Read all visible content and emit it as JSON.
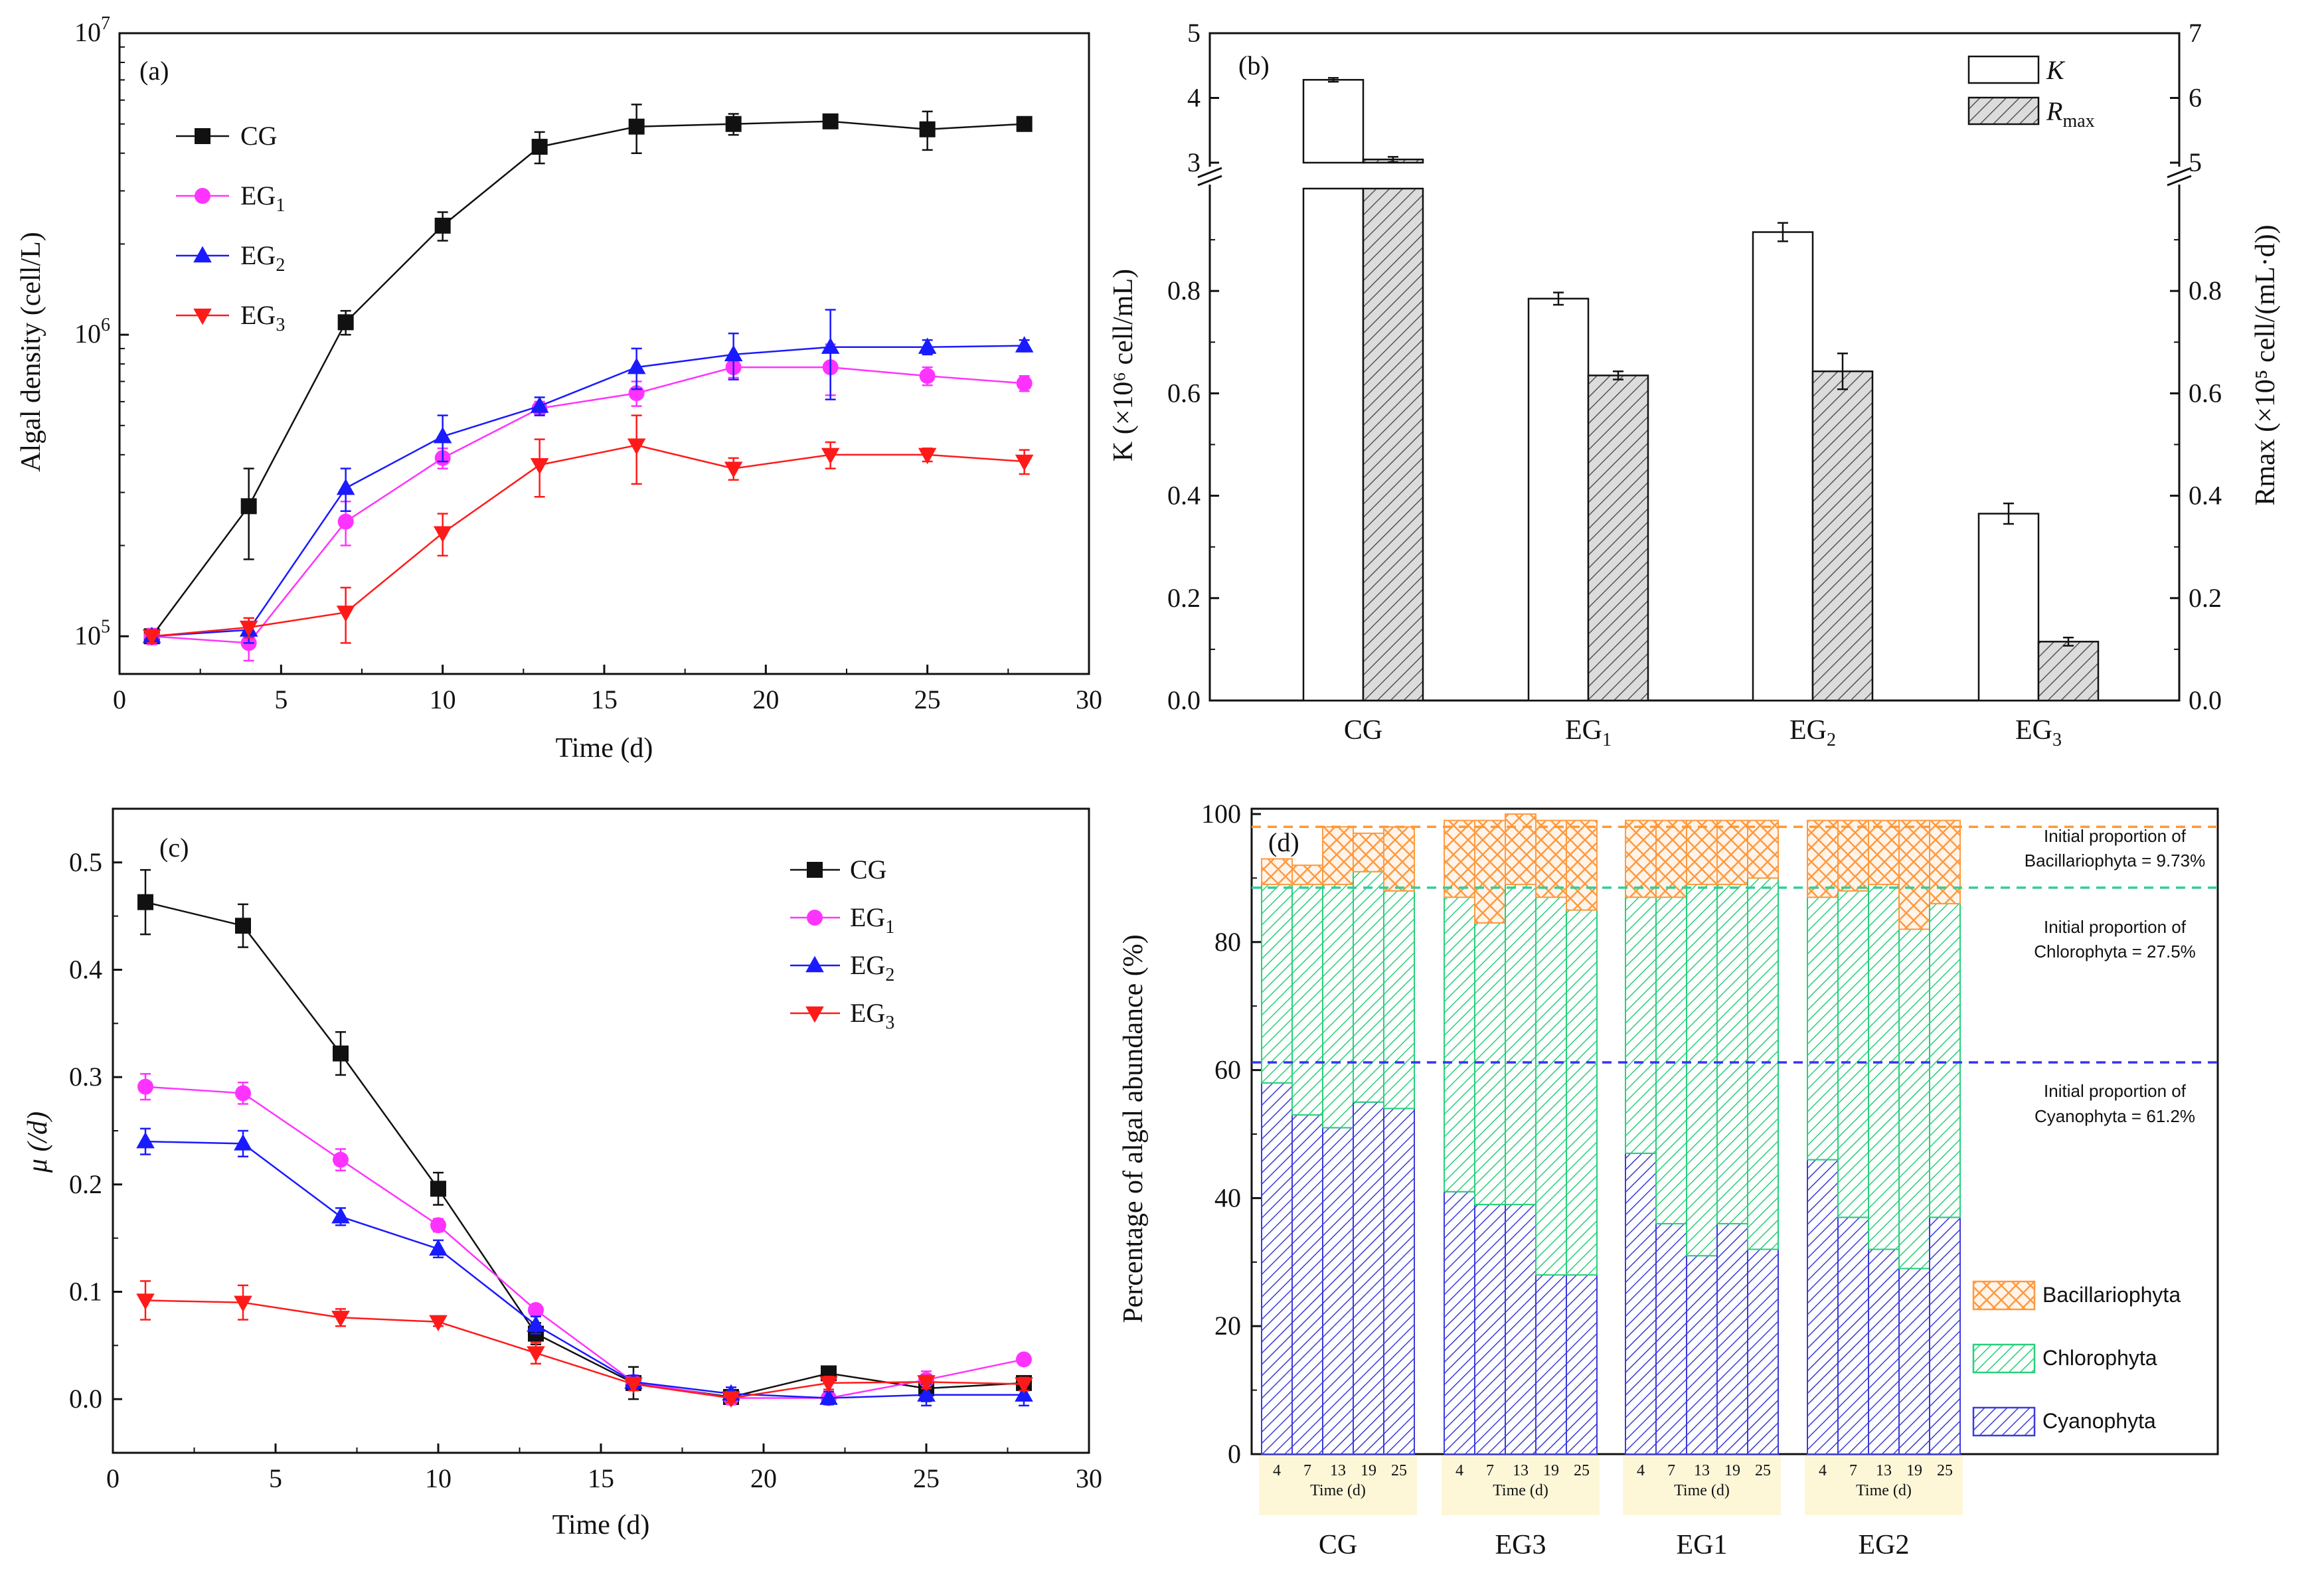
{
  "colors": {
    "CG": "#111111",
    "EG1": "#ff33ff",
    "EG2": "#1a1aff",
    "EG3": "#ff1a1a",
    "cyano": "#3b3bdd",
    "chloro": "#27d07a",
    "bacil": "#ff9a40",
    "line_cyano": "#3333ff",
    "line_chloro": "#33cc99",
    "line_bacil": "#ff9933",
    "xband": "#fdf7d8"
  },
  "chart_data": [
    {
      "id": "a",
      "type": "line",
      "panel_label": "(a)",
      "xlabel": "Time (d)",
      "ylabel": "Algal density (cell/L)",
      "yscale": "log",
      "xlim": [
        0,
        30
      ],
      "ylim": [
        75000,
        10000000
      ],
      "x_ticks": [
        "0",
        "5",
        "10",
        "15",
        "20",
        "25",
        "30"
      ],
      "y_ticks": [
        {
          "base": "10",
          "exp": "5",
          "value": 100000
        },
        {
          "base": "10",
          "exp": "6",
          "value": 1000000
        },
        {
          "base": "10",
          "exp": "7",
          "value": 10000000
        }
      ],
      "x": [
        1,
        4,
        7,
        10,
        13,
        16,
        19,
        22,
        25,
        28
      ],
      "series": [
        {
          "key": "CG",
          "name": "CG",
          "sub": "",
          "marker": "square",
          "values": [
            100000,
            270000,
            1100000,
            2300000,
            4200000,
            4900000,
            5000000,
            5100000,
            4800000,
            5000000
          ],
          "errors": [
            5000,
            90000,
            100000,
            250000,
            500000,
            900000,
            400000,
            200000,
            700000,
            200000
          ]
        },
        {
          "key": "EG1",
          "name": "EG",
          "sub": "1",
          "marker": "circle",
          "values": [
            100000,
            95000,
            240000,
            390000,
            570000,
            640000,
            780000,
            780000,
            730000,
            690000
          ],
          "errors": [
            6000,
            12000,
            40000,
            30000,
            30000,
            60000,
            60000,
            150000,
            50000,
            40000
          ]
        },
        {
          "key": "EG2",
          "name": "EG",
          "sub": "2",
          "marker": "triangle-up",
          "values": [
            100000,
            105000,
            310000,
            460000,
            580000,
            780000,
            860000,
            910000,
            910000,
            920000
          ],
          "errors": [
            5000,
            10000,
            50000,
            80000,
            40000,
            120000,
            150000,
            300000,
            50000,
            40000
          ]
        },
        {
          "key": "EG3",
          "name": "EG",
          "sub": "3",
          "marker": "triangle-down",
          "values": [
            100000,
            107000,
            120000,
            220000,
            370000,
            430000,
            360000,
            400000,
            400000,
            380000
          ],
          "errors": [
            5000,
            8000,
            25000,
            35000,
            80000,
            110000,
            30000,
            40000,
            20000,
            35000
          ]
        }
      ]
    },
    {
      "id": "b",
      "type": "bar",
      "panel_label": "(b)",
      "ylabel_left": "K (×10⁶ cell/mL)",
      "ylabel_right": "Rmax (×10⁵ cell/(mL·d))",
      "categories": [
        {
          "name": "CG",
          "sub": ""
        },
        {
          "name": "EG",
          "sub": "1"
        },
        {
          "name": "EG",
          "sub": "2"
        },
        {
          "name": "EG",
          "sub": "3"
        }
      ],
      "left_ticks_lower": [
        "0.0",
        "0.2",
        "0.4",
        "0.6",
        "0.8"
      ],
      "left_ticks_upper": [
        "3",
        "4",
        "5"
      ],
      "right_ticks_lower": [
        "0.0",
        "0.2",
        "0.4",
        "0.6",
        "0.8"
      ],
      "right_ticks_upper": [
        "5",
        "6",
        "7"
      ],
      "ylim_lower": [
        0,
        1.0
      ],
      "ylim_upper": [
        3,
        5
      ],
      "series": [
        {
          "key": "K",
          "name": "K",
          "sub": "",
          "values": [
            4.28,
            0.785,
            0.915,
            0.365
          ],
          "errors": [
            0.03,
            0.012,
            0.018,
            0.02
          ]
        },
        {
          "key": "Rmax",
          "name": "R",
          "sub": "max",
          "values": [
            5.05,
            0.635,
            0.643,
            0.115
          ],
          "errors": [
            0.04,
            0.008,
            0.035,
            0.008
          ]
        }
      ]
    },
    {
      "id": "c",
      "type": "line",
      "panel_label": "(c)",
      "xlabel": "Time (d)",
      "ylabel": "μ (/d)",
      "xlim": [
        0,
        30
      ],
      "ylim": [
        -0.05,
        0.55
      ],
      "x_ticks": [
        "0",
        "5",
        "10",
        "15",
        "20",
        "25",
        "30"
      ],
      "y_ticks": [
        "0.0",
        "0.1",
        "0.2",
        "0.3",
        "0.4",
        "0.5"
      ],
      "x": [
        1,
        4,
        7,
        10,
        13,
        16,
        19,
        22,
        25,
        28
      ],
      "series": [
        {
          "key": "CG",
          "name": "CG",
          "sub": "",
          "marker": "square",
          "values": [
            0.463,
            0.441,
            0.322,
            0.196,
            0.061,
            0.015,
            0.002,
            0.024,
            0.01,
            0.015
          ],
          "errors": [
            0.03,
            0.02,
            0.02,
            0.015,
            0.01,
            0.015,
            0.006,
            0.005,
            0.012,
            0.004
          ]
        },
        {
          "key": "EG1",
          "name": "EG",
          "sub": "1",
          "marker": "circle",
          "values": [
            0.291,
            0.285,
            0.223,
            0.162,
            0.083,
            0.016,
            0.001,
            0.001,
            0.018,
            0.037
          ],
          "errors": [
            0.012,
            0.01,
            0.01,
            0.006,
            0.005,
            0.006,
            0.006,
            0.006,
            0.008,
            0.004
          ]
        },
        {
          "key": "EG2",
          "name": "EG",
          "sub": "2",
          "marker": "triangle-up",
          "values": [
            0.24,
            0.238,
            0.17,
            0.14,
            0.069,
            0.016,
            0.005,
            0.001,
            0.004,
            0.004
          ],
          "errors": [
            0.012,
            0.012,
            0.008,
            0.008,
            0.008,
            0.006,
            0.006,
            0.006,
            0.01,
            0.01
          ]
        },
        {
          "key": "EG3",
          "name": "EG",
          "sub": "3",
          "marker": "triangle-down",
          "values": [
            0.092,
            0.09,
            0.076,
            0.072,
            0.043,
            0.014,
            0.001,
            0.015,
            0.016,
            0.014
          ],
          "errors": [
            0.018,
            0.016,
            0.008,
            0.004,
            0.01,
            0.006,
            0.004,
            0.006,
            0.006,
            0.006
          ]
        }
      ]
    },
    {
      "id": "d",
      "type": "bar",
      "stacked": true,
      "panel_label": "(d)",
      "ylabel": "Percentage of algal abundance (%)",
      "y_ticks": [
        "0",
        "20",
        "40",
        "60",
        "80",
        "100"
      ],
      "ylim": [
        0,
        100
      ],
      "groups": [
        "CG",
        "EG3",
        "EG1",
        "EG2"
      ],
      "days": [
        "4",
        "7",
        "13",
        "19",
        "25"
      ],
      "time_label": "Time (d)",
      "series": [
        {
          "key": "cyano",
          "name": "Cyanophyta",
          "values": [
            [
              58,
              53,
              51,
              55,
              54
            ],
            [
              41,
              39,
              39,
              28,
              28
            ],
            [
              47,
              36,
              31,
              36,
              32
            ],
            [
              46,
              37,
              32,
              29,
              37
            ]
          ]
        },
        {
          "key": "chloro",
          "name": "Chlorophyta",
          "values": [
            [
              31,
              36,
              38,
              36,
              34
            ],
            [
              46,
              44,
              50,
              59,
              57
            ],
            [
              40,
              51,
              58,
              53,
              58
            ],
            [
              41,
              51,
              57,
              53,
              49
            ]
          ]
        },
        {
          "key": "bacil",
          "name": "Bacillariophyta",
          "values": [
            [
              4,
              3,
              9,
              6,
              10
            ],
            [
              12,
              16,
              11,
              12,
              14
            ],
            [
              12,
              12,
              10,
              10,
              9
            ],
            [
              12,
              11,
              10,
              17,
              13
            ]
          ]
        }
      ],
      "reference_lines": [
        {
          "key": "bacil",
          "value": 98,
          "line1": "Initial proportion of",
          "line2": "Bacillariophyta = 9.73%"
        },
        {
          "key": "chloro",
          "value": 88.5,
          "line1": "Initial proportion of",
          "line2": "Chlorophyta = 27.5%"
        },
        {
          "key": "cyano",
          "value": 61.2,
          "line1": "Initial proportion of",
          "line2": "Cyanophyta = 61.2%"
        }
      ]
    }
  ]
}
